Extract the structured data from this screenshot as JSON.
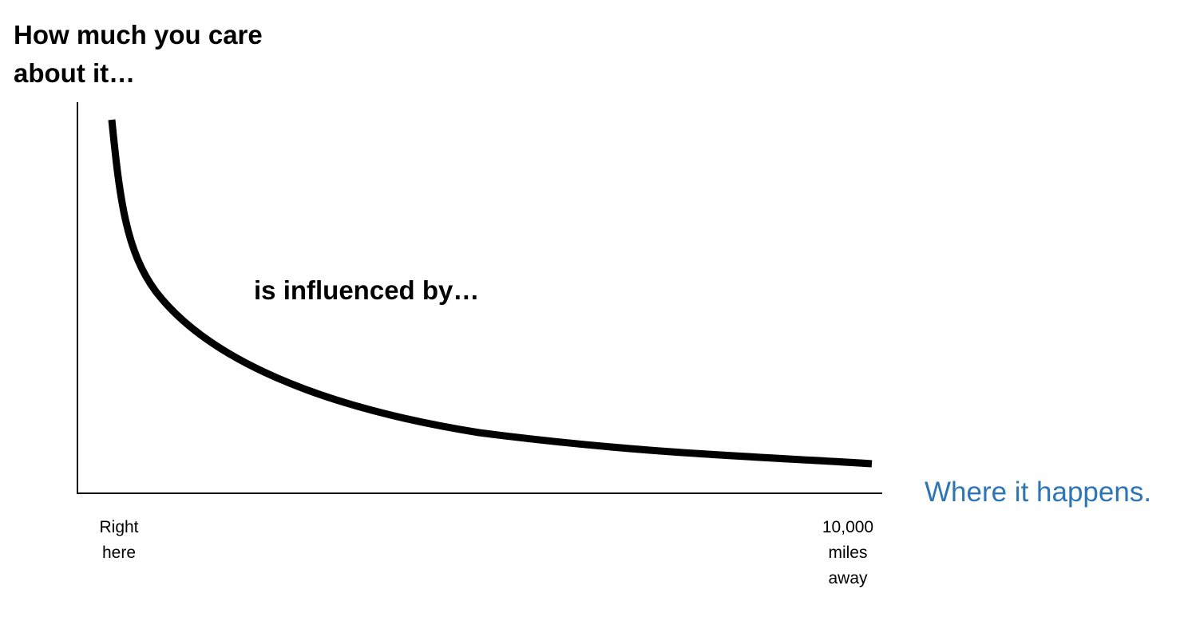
{
  "y_axis_label": [
    "How much you care",
    "about it…"
  ],
  "annotation": "is influenced by…",
  "x_axis_label": "Where it happens.",
  "x_axis_ticks": [
    [
      "Right",
      "here"
    ],
    [
      "10,000",
      "miles",
      "away"
    ]
  ]
}
